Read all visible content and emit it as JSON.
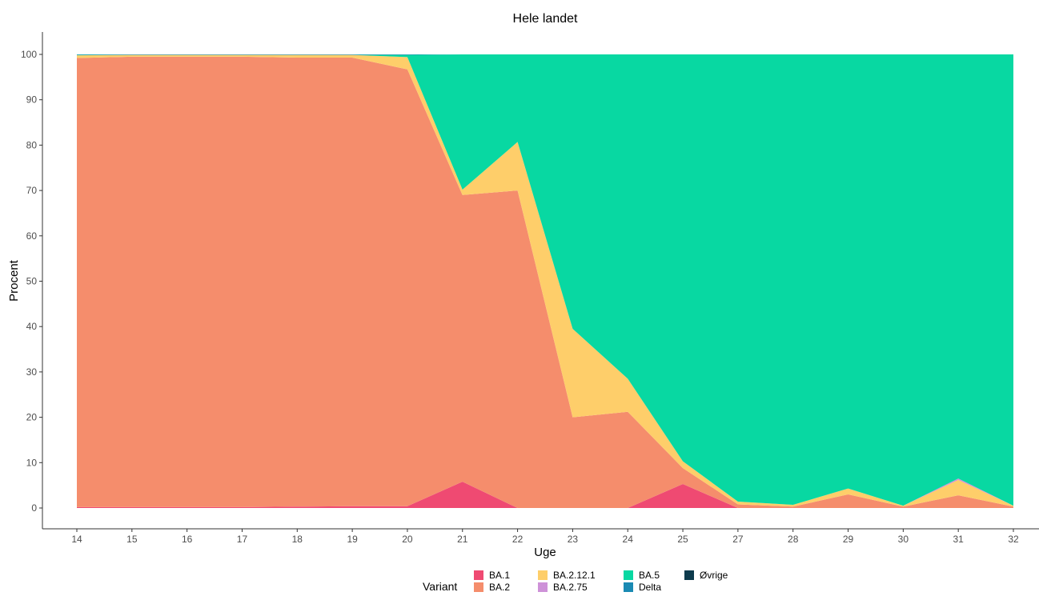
{
  "chart_data": {
    "type": "area",
    "stacked": true,
    "title": "Hele landet",
    "xlabel": "Uge",
    "ylabel": "Procent",
    "ylim": [
      0,
      100
    ],
    "yticks": [
      0,
      10,
      20,
      30,
      40,
      50,
      60,
      70,
      80,
      90,
      100
    ],
    "categories": [
      "14",
      "15",
      "16",
      "17",
      "18",
      "19",
      "20",
      "21",
      "22",
      "23",
      "24",
      "25",
      "27",
      "28",
      "29",
      "30",
      "31",
      "32"
    ],
    "legend_title": "Variant",
    "legend_position": "bottom",
    "grid": false,
    "series": [
      {
        "name": "BA.1",
        "color": "#EF4A72",
        "values": [
          0.2,
          0.2,
          0.2,
          0.2,
          0.3,
          0.4,
          0.4,
          5.8,
          0,
          0,
          0,
          5.3,
          0,
          0,
          0,
          0,
          0,
          0
        ]
      },
      {
        "name": "BA.2",
        "color": "#F58D6C",
        "values": [
          99.0,
          99.3,
          99.3,
          99.3,
          99.0,
          98.9,
          96.3,
          63.2,
          70.0,
          20.0,
          21.2,
          3.5,
          0.8,
          0.3,
          3.0,
          0.3,
          2.8,
          0.3
        ]
      },
      {
        "name": "BA.2.12.1",
        "color": "#FECE6A",
        "values": [
          0.6,
          0.4,
          0.4,
          0.4,
          0.6,
          0.6,
          2.7,
          1.2,
          10.7,
          19.5,
          7.3,
          1.5,
          0.6,
          0.4,
          1.3,
          0.2,
          3.4,
          0.2
        ]
      },
      {
        "name": "BA.2.75",
        "color": "#CE92D8",
        "values": [
          0,
          0,
          0,
          0,
          0,
          0,
          0,
          0,
          0,
          0,
          0,
          0,
          0,
          0,
          0,
          0,
          0.3,
          0
        ]
      },
      {
        "name": "BA.5",
        "color": "#08D8A2",
        "values": [
          0.1,
          0,
          0,
          0,
          0,
          0,
          0.5,
          29.8,
          19.3,
          60.5,
          71.5,
          89.7,
          98.6,
          99.3,
          95.7,
          99.5,
          93.5,
          99.5
        ]
      },
      {
        "name": "Delta",
        "color": "#1A8AB3",
        "values": [
          0.1,
          0.1,
          0.1,
          0.1,
          0.1,
          0.1,
          0.1,
          0,
          0,
          0,
          0,
          0,
          0,
          0,
          0,
          0,
          0,
          0
        ]
      },
      {
        "name": "Øvrige",
        "color": "#0D3B4D",
        "values": [
          0,
          0,
          0,
          0,
          0,
          0,
          0,
          0,
          0,
          0,
          0,
          0,
          0,
          0,
          0,
          0,
          0,
          0
        ]
      }
    ]
  }
}
